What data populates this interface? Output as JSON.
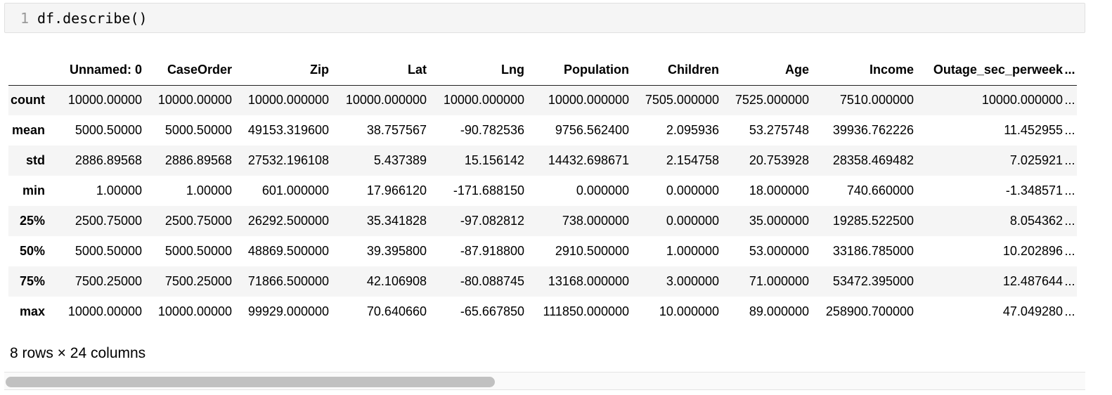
{
  "cell": {
    "line_number": "1",
    "code": "df.describe()"
  },
  "table": {
    "columns": [
      "",
      "Unnamed: 0",
      "CaseOrder",
      "Zip",
      "Lat",
      "Lng",
      "Population",
      "Children",
      "Age",
      "Income",
      "Outage_sec_perweek",
      "..."
    ],
    "rows": [
      {
        "label": "count",
        "values": [
          "10000.00000",
          "10000.00000",
          "10000.000000",
          "10000.000000",
          "10000.000000",
          "10000.000000",
          "7505.000000",
          "7525.000000",
          "7510.000000",
          "10000.000000",
          "..."
        ]
      },
      {
        "label": "mean",
        "values": [
          "5000.50000",
          "5000.50000",
          "49153.319600",
          "38.757567",
          "-90.782536",
          "9756.562400",
          "2.095936",
          "53.275748",
          "39936.762226",
          "11.452955",
          "..."
        ]
      },
      {
        "label": "std",
        "values": [
          "2886.89568",
          "2886.89568",
          "27532.196108",
          "5.437389",
          "15.156142",
          "14432.698671",
          "2.154758",
          "20.753928",
          "28358.469482",
          "7.025921",
          "..."
        ]
      },
      {
        "label": "min",
        "values": [
          "1.00000",
          "1.00000",
          "601.000000",
          "17.966120",
          "-171.688150",
          "0.000000",
          "0.000000",
          "18.000000",
          "740.660000",
          "-1.348571",
          "..."
        ]
      },
      {
        "label": "25%",
        "values": [
          "2500.75000",
          "2500.75000",
          "26292.500000",
          "35.341828",
          "-97.082812",
          "738.000000",
          "0.000000",
          "35.000000",
          "19285.522500",
          "8.054362",
          "..."
        ]
      },
      {
        "label": "50%",
        "values": [
          "5000.50000",
          "5000.50000",
          "48869.500000",
          "39.395800",
          "-87.918800",
          "2910.500000",
          "1.000000",
          "53.000000",
          "33186.785000",
          "10.202896",
          "..."
        ]
      },
      {
        "label": "75%",
        "values": [
          "7500.25000",
          "7500.25000",
          "71866.500000",
          "42.106908",
          "-80.088745",
          "13168.000000",
          "3.000000",
          "71.000000",
          "53472.395000",
          "12.487644",
          "..."
        ]
      },
      {
        "label": "max",
        "values": [
          "10000.00000",
          "10000.00000",
          "99929.000000",
          "70.640660",
          "-65.667850",
          "111850.000000",
          "10.000000",
          "89.000000",
          "258900.700000",
          "47.049280",
          "..."
        ]
      }
    ]
  },
  "summary": "8 rows × 24 columns",
  "colors": {
    "stripe": "#f5f5f5",
    "scroll_thumb": "#c1c1c1"
  }
}
